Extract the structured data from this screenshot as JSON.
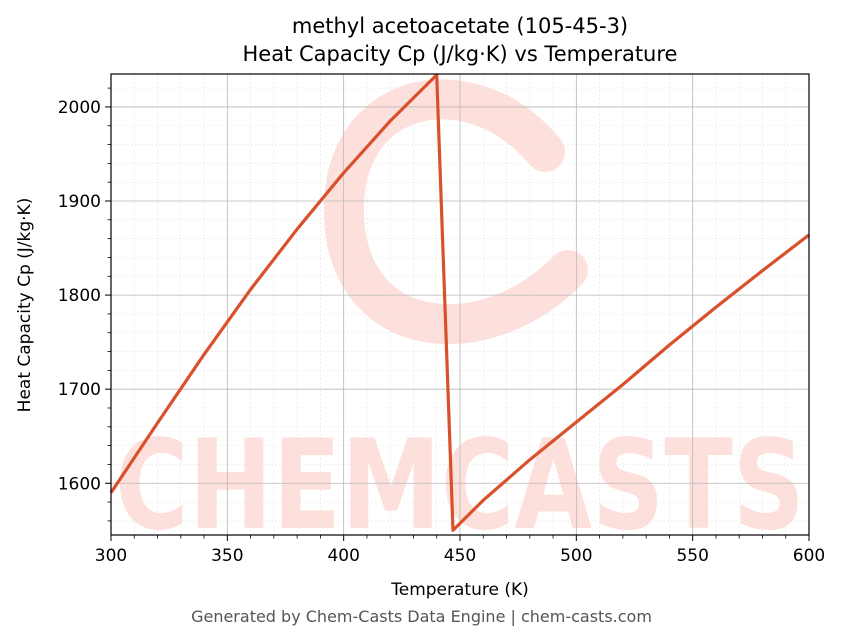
{
  "footer": "Generated by Chem-Casts Data Engine | chem-casts.com",
  "watermark": {
    "text": "CHEMCASTS",
    "color": "#fde0dc"
  },
  "chart_data": {
    "type": "line",
    "title": "methyl acetoacetate (105-45-3)",
    "subtitle": "Heat Capacity Cp (J/kg·K) vs Temperature",
    "xlabel": "Temperature (K)",
    "ylabel": "Heat Capacity Cp (J/kg·K)",
    "xlim": [
      300,
      600
    ],
    "ylim": [
      1545,
      2035
    ],
    "xticks": [
      300,
      350,
      400,
      450,
      500,
      550,
      600
    ],
    "yticks": [
      1600,
      1700,
      1800,
      1900,
      2000
    ],
    "grid": true,
    "legend": "none",
    "line_color": "#d9512c",
    "series": [
      {
        "x": [
          300,
          320,
          340,
          360,
          380,
          400,
          420,
          440,
          447,
          460,
          480,
          500,
          520,
          540,
          560,
          580,
          600
        ],
        "y": [
          1590,
          1664,
          1737,
          1806,
          1870,
          1930,
          1985,
          2034,
          1550,
          1582,
          1625,
          1665,
          1705,
          1747,
          1787,
          1826,
          1864
        ]
      }
    ]
  }
}
